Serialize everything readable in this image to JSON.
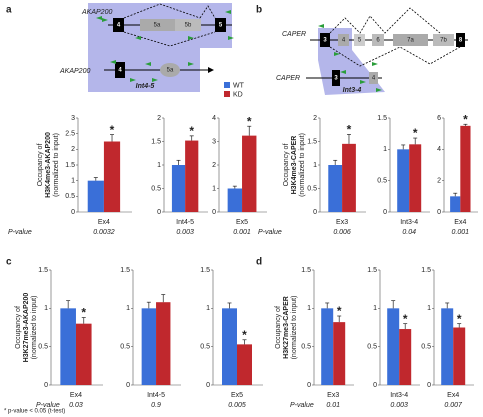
{
  "panels": [
    "a",
    "b",
    "c",
    "d"
  ],
  "footnote": "* p-value < 0.05 (t-test)",
  "diagrams": {
    "a": {
      "gene_labels": [
        "AKAP200",
        "AKAP200"
      ],
      "exons": [
        "4",
        "5a",
        "5b",
        "5"
      ],
      "construct_parts": [
        "4",
        "5a"
      ],
      "region": "Int4-5"
    },
    "b": {
      "gene_labels": [
        "CAPER",
        "CAPER"
      ],
      "exons": [
        "3",
        "4",
        "5",
        "6",
        "7a",
        "7b",
        "8"
      ],
      "construct_parts": [
        "3",
        "4"
      ],
      "region": "Int3-4"
    }
  },
  "chart_data": [
    {
      "type": "bar",
      "categories": [
        "Ex4"
      ],
      "ylabel": [
        "Occupancy of",
        "H3K4me3-AKAP200",
        "(normalized to input)"
      ],
      "p_value_label": "P-value",
      "p_value": "0.0032",
      "annotation": "*",
      "series": [
        {
          "name": "WT",
          "color": "#3a6fd8",
          "values": [
            1.0
          ],
          "errors": [
            0.1
          ]
        },
        {
          "name": "KD",
          "color": "#c0282d",
          "values": [
            2.25
          ],
          "errors": [
            0.22
          ]
        }
      ],
      "ylim": [
        0,
        3
      ],
      "yticks": [
        0,
        0.5,
        1,
        1.5,
        2,
        2.5,
        3
      ]
    },
    {
      "type": "bar",
      "categories": [
        "Int4-5"
      ],
      "p_value": "0.003",
      "annotation": "*",
      "series": [
        {
          "name": "WT",
          "color": "#3a6fd8",
          "values": [
            1.0
          ],
          "errors": [
            0.1
          ]
        },
        {
          "name": "KD",
          "color": "#c0282d",
          "values": [
            1.52
          ],
          "errors": [
            0.1
          ]
        }
      ],
      "ylim": [
        0,
        2
      ],
      "yticks": [
        0,
        0.5,
        1,
        1.5,
        2
      ]
    },
    {
      "type": "bar",
      "categories": [
        "Ex5"
      ],
      "p_value": "0.001",
      "annotation": "*",
      "series": [
        {
          "name": "WT",
          "color": "#3a6fd8",
          "values": [
            1.0
          ],
          "errors": [
            0.1
          ]
        },
        {
          "name": "KD",
          "color": "#c0282d",
          "values": [
            3.25
          ],
          "errors": [
            0.4
          ]
        }
      ],
      "ylim": [
        0,
        4
      ],
      "yticks": [
        0,
        1,
        2,
        3,
        4
      ]
    },
    {
      "type": "bar",
      "categories": [
        "Ex3"
      ],
      "ylabel": [
        "Occupancy of",
        "H3K4me3-CAPER",
        "(normalized to input)"
      ],
      "p_value_label": "P-value",
      "p_value": "0.006",
      "annotation": "*",
      "series": [
        {
          "name": "WT",
          "color": "#3a6fd8",
          "values": [
            1.0
          ],
          "errors": [
            0.1
          ]
        },
        {
          "name": "KD",
          "color": "#c0282d",
          "values": [
            1.45
          ],
          "errors": [
            0.2
          ]
        }
      ],
      "ylim": [
        0,
        2
      ],
      "yticks": [
        0,
        0.5,
        1,
        1.5,
        2
      ]
    },
    {
      "type": "bar",
      "categories": [
        "Int3-4"
      ],
      "p_value": "0.04",
      "annotation": "*",
      "series": [
        {
          "name": "WT",
          "color": "#3a6fd8",
          "values": [
            1.0
          ],
          "errors": [
            0.07
          ]
        },
        {
          "name": "KD",
          "color": "#c0282d",
          "values": [
            1.08
          ],
          "errors": [
            0.1
          ]
        }
      ],
      "ylim": [
        0,
        1.5
      ],
      "yticks": [
        0,
        0.5,
        1,
        1.5
      ]
    },
    {
      "type": "bar",
      "categories": [
        "Ex4"
      ],
      "p_value": "0.001",
      "annotation": "*",
      "series": [
        {
          "name": "WT",
          "color": "#3a6fd8",
          "values": [
            1.0
          ],
          "errors": [
            0.2
          ]
        },
        {
          "name": "KD",
          "color": "#c0282d",
          "values": [
            5.5
          ],
          "errors": [
            0.1
          ]
        }
      ],
      "ylim": [
        0,
        6
      ],
      "yticks": [
        0,
        2,
        4,
        6
      ]
    },
    {
      "type": "bar",
      "categories": [
        "Ex4"
      ],
      "ylabel": [
        "Occupancy of",
        "H3K27me3-AKAP200",
        "(normalized to input)"
      ],
      "p_value_label": "P-value",
      "p_value": "0.03",
      "annotation": "*",
      "series": [
        {
          "name": "WT",
          "color": "#3a6fd8",
          "values": [
            1.0
          ],
          "errors": [
            0.1
          ]
        },
        {
          "name": "KD",
          "color": "#c0282d",
          "values": [
            0.8
          ],
          "errors": [
            0.08
          ]
        }
      ],
      "ylim": [
        0,
        1.5
      ],
      "yticks": [
        0,
        0.5,
        1,
        1.5
      ]
    },
    {
      "type": "bar",
      "categories": [
        "Int4-5"
      ],
      "p_value": "0.9",
      "series": [
        {
          "name": "WT",
          "color": "#3a6fd8",
          "values": [
            1.0
          ],
          "errors": [
            0.08
          ]
        },
        {
          "name": "KD",
          "color": "#c0282d",
          "values": [
            1.08
          ],
          "errors": [
            0.1
          ]
        }
      ],
      "ylim": [
        0,
        1.5
      ],
      "yticks": [
        0,
        0.5,
        1,
        1.5
      ]
    },
    {
      "type": "bar",
      "categories": [
        "Ex5"
      ],
      "p_value": "0.005",
      "annotation": "*",
      "series": [
        {
          "name": "WT",
          "color": "#3a6fd8",
          "values": [
            1.0
          ],
          "errors": [
            0.07
          ]
        },
        {
          "name": "KD",
          "color": "#c0282d",
          "values": [
            0.53
          ],
          "errors": [
            0.06
          ]
        }
      ],
      "ylim": [
        0,
        1.5
      ],
      "yticks": [
        0,
        0.5,
        1,
        1.5
      ]
    },
    {
      "type": "bar",
      "categories": [
        "Ex3"
      ],
      "ylabel": [
        "Occupancy of",
        "H3K27me3-CAPER",
        "(normalized to input)"
      ],
      "p_value_label": "P-value",
      "p_value": "0.01",
      "annotation": "*",
      "series": [
        {
          "name": "WT",
          "color": "#3a6fd8",
          "values": [
            1.0
          ],
          "errors": [
            0.07
          ]
        },
        {
          "name": "KD",
          "color": "#c0282d",
          "values": [
            0.82
          ],
          "errors": [
            0.08
          ]
        }
      ],
      "ylim": [
        0,
        1.5
      ],
      "yticks": [
        0,
        0.5,
        1,
        1.5
      ]
    },
    {
      "type": "bar",
      "categories": [
        "Int3-4"
      ],
      "p_value": "0.003",
      "annotation": "*",
      "series": [
        {
          "name": "WT",
          "color": "#3a6fd8",
          "values": [
            1.0
          ],
          "errors": [
            0.1
          ]
        },
        {
          "name": "KD",
          "color": "#c0282d",
          "values": [
            0.73
          ],
          "errors": [
            0.07
          ]
        }
      ],
      "ylim": [
        0,
        1.5
      ],
      "yticks": [
        0,
        0.5,
        1,
        1.5
      ]
    },
    {
      "type": "bar",
      "categories": [
        "Ex4"
      ],
      "p_value": "0.007",
      "annotation": "*",
      "series": [
        {
          "name": "WT",
          "color": "#3a6fd8",
          "values": [
            1.0
          ],
          "errors": [
            0.07
          ]
        },
        {
          "name": "KD",
          "color": "#c0282d",
          "values": [
            0.75
          ],
          "errors": [
            0.05
          ]
        }
      ],
      "ylim": [
        0,
        1.5
      ],
      "yticks": [
        0,
        0.5,
        1,
        1.5
      ]
    }
  ]
}
